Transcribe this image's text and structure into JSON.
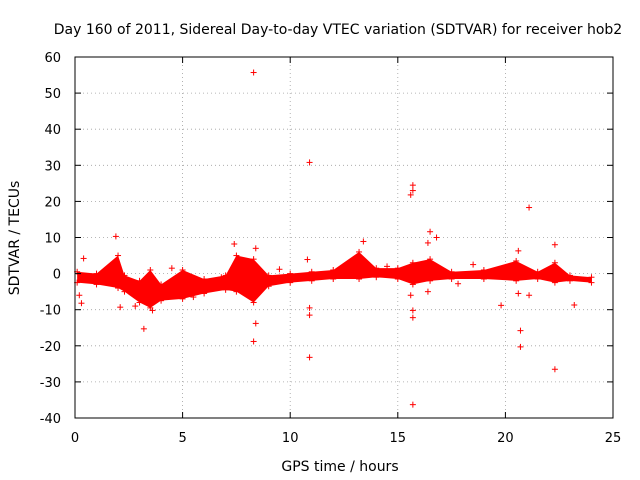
{
  "chart_data": {
    "type": "scatter",
    "title": "Day 160 of 2011, Sidereal Day-to-day VTEC variation (SDTVAR) for receiver hob2",
    "xlabel": "GPS time / hours",
    "ylabel": "SDTVAR / TECUs",
    "xlim": [
      0,
      25
    ],
    "ylim": [
      -40,
      60
    ],
    "xticks": [
      "0",
      "5",
      "10",
      "15",
      "20",
      "25"
    ],
    "yticks": [
      "60",
      "50",
      "40",
      "30",
      "20",
      "10",
      "0",
      "-10",
      "-20",
      "-30",
      "-40"
    ],
    "grid": true,
    "marker": "+",
    "color": "#ff0000",
    "band": [
      {
        "x": 0.1,
        "lo": -2.5,
        "hi": 0.5
      },
      {
        "x": 1.0,
        "lo": -3.0,
        "hi": 0.0
      },
      {
        "x": 2.0,
        "lo": -4.0,
        "hi": 5.0
      },
      {
        "x": 2.3,
        "lo": -5.0,
        "hi": -0.5
      },
      {
        "x": 3.0,
        "lo": -8.0,
        "hi": -2.0
      },
      {
        "x": 3.5,
        "lo": -9.5,
        "hi": 1.0
      },
      {
        "x": 4.0,
        "lo": -7.5,
        "hi": -3.0
      },
      {
        "x": 5.0,
        "lo": -7.0,
        "hi": 1.0
      },
      {
        "x": 6.0,
        "lo": -5.5,
        "hi": -1.5
      },
      {
        "x": 7.0,
        "lo": -4.5,
        "hi": -0.5
      },
      {
        "x": 7.5,
        "lo": -5.0,
        "hi": 5.0
      },
      {
        "x": 8.3,
        "lo": -8.0,
        "hi": 4.0
      },
      {
        "x": 9.0,
        "lo": -3.5,
        "hi": -0.5
      },
      {
        "x": 10.0,
        "lo": -2.5,
        "hi": 0.0
      },
      {
        "x": 11.0,
        "lo": -2.0,
        "hi": 0.5
      },
      {
        "x": 12.0,
        "lo": -1.5,
        "hi": 1.0
      },
      {
        "x": 13.2,
        "lo": -1.5,
        "hi": 6.0
      },
      {
        "x": 14.0,
        "lo": -1.0,
        "hi": 1.5
      },
      {
        "x": 15.0,
        "lo": -1.5,
        "hi": 1.5
      },
      {
        "x": 15.7,
        "lo": -3.0,
        "hi": 3.0
      },
      {
        "x": 16.5,
        "lo": -2.0,
        "hi": 4.0
      },
      {
        "x": 17.5,
        "lo": -1.5,
        "hi": 0.5
      },
      {
        "x": 19.0,
        "lo": -1.5,
        "hi": 1.0
      },
      {
        "x": 20.5,
        "lo": -2.0,
        "hi": 3.5
      },
      {
        "x": 21.5,
        "lo": -1.5,
        "hi": 0.5
      },
      {
        "x": 22.3,
        "lo": -2.5,
        "hi": 3.0
      },
      {
        "x": 23.0,
        "lo": -2.0,
        "hi": -0.5
      },
      {
        "x": 24.0,
        "lo": -2.5,
        "hi": -1.0
      }
    ],
    "points": [
      {
        "x": 8.3,
        "y": 55.7
      },
      {
        "x": 10.9,
        "y": 30.8
      },
      {
        "x": 15.7,
        "y": 24.5
      },
      {
        "x": 15.7,
        "y": 23.0
      },
      {
        "x": 15.6,
        "y": 21.8
      },
      {
        "x": 21.1,
        "y": 18.3
      },
      {
        "x": 16.5,
        "y": 11.6
      },
      {
        "x": 16.8,
        "y": 10.0
      },
      {
        "x": 1.9,
        "y": 10.3
      },
      {
        "x": 16.4,
        "y": 8.5
      },
      {
        "x": 22.3,
        "y": 8.0
      },
      {
        "x": 7.4,
        "y": 8.2
      },
      {
        "x": 13.4,
        "y": 8.9
      },
      {
        "x": 8.4,
        "y": 7.0
      },
      {
        "x": 20.6,
        "y": 6.3
      },
      {
        "x": 0.4,
        "y": 4.2
      },
      {
        "x": 10.8,
        "y": 3.9
      },
      {
        "x": 0.2,
        "y": -6.0
      },
      {
        "x": 0.3,
        "y": -8.2
      },
      {
        "x": 2.1,
        "y": -9.3
      },
      {
        "x": 3.2,
        "y": -15.3
      },
      {
        "x": 3.6,
        "y": -10.2
      },
      {
        "x": 8.4,
        "y": -13.8
      },
      {
        "x": 8.3,
        "y": -18.8
      },
      {
        "x": 10.9,
        "y": -9.5
      },
      {
        "x": 10.9,
        "y": -11.5
      },
      {
        "x": 10.9,
        "y": -23.2
      },
      {
        "x": 15.6,
        "y": -6.0
      },
      {
        "x": 15.7,
        "y": -10.2
      },
      {
        "x": 15.7,
        "y": -12.2
      },
      {
        "x": 15.7,
        "y": -36.3
      },
      {
        "x": 16.4,
        "y": -5.0
      },
      {
        "x": 19.8,
        "y": -8.8
      },
      {
        "x": 20.6,
        "y": -5.5
      },
      {
        "x": 20.7,
        "y": -15.8
      },
      {
        "x": 20.7,
        "y": -20.3
      },
      {
        "x": 21.1,
        "y": -6.0
      },
      {
        "x": 22.3,
        "y": -26.5
      },
      {
        "x": 23.2,
        "y": -8.7
      },
      {
        "x": 12.5,
        "y": 2.0
      },
      {
        "x": 18.5,
        "y": 2.5
      },
      {
        "x": 14.5,
        "y": 2.0
      },
      {
        "x": 6.8,
        "y": -1.0
      },
      {
        "x": 9.5,
        "y": 1.2
      },
      {
        "x": 17.8,
        "y": -2.8
      },
      {
        "x": 4.5,
        "y": 1.5
      },
      {
        "x": 5.5,
        "y": -6.5
      },
      {
        "x": 2.8,
        "y": -9.0
      }
    ]
  }
}
